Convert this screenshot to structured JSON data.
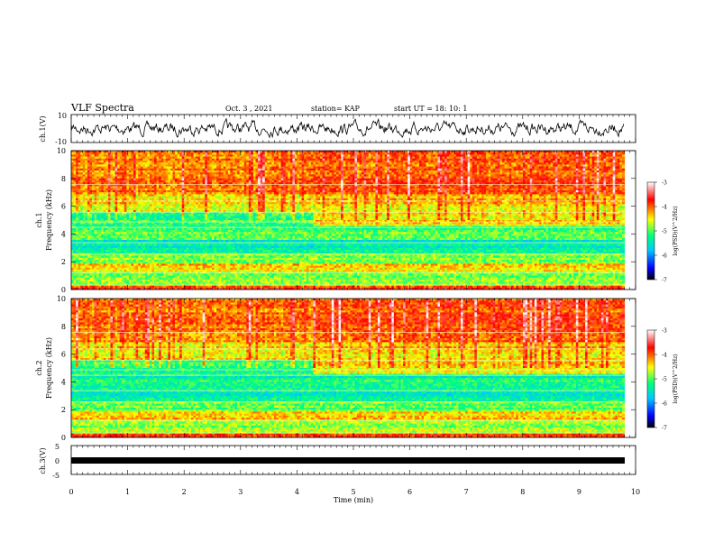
{
  "header": {
    "title": "VLF Spectra",
    "date": "Oct. 3 , 2021",
    "station": "station= KAP",
    "start": "start  UT =   18: 10: 1"
  },
  "chart_data": [
    {
      "type": "line",
      "ylabel": "ch.1(V)",
      "ylim": [
        -10,
        10
      ],
      "yticks": [
        "10",
        "-10"
      ],
      "x_range": [
        0,
        10
      ],
      "note": "noisy waveform from 0 to ~9.8 min"
    },
    {
      "type": "heatmap",
      "ylabel": "ch.1\nFrequency (kHz)",
      "ylim": [
        0,
        10
      ],
      "yticks": [
        "0",
        "2",
        "4",
        "6",
        "8",
        "10"
      ],
      "x_range": [
        0,
        10
      ],
      "data_end_min": 9.8,
      "colorbar": {
        "label": "log(PSD)(V^2/Hz)",
        "range": [
          -7,
          -3
        ],
        "ticks": [
          "-3",
          "-4",
          "-5",
          "-6",
          "-7"
        ]
      }
    },
    {
      "type": "heatmap",
      "ylabel": "ch.2\nFrequency (kHz)",
      "ylim": [
        0,
        10
      ],
      "yticks": [
        "0",
        "2",
        "4",
        "6",
        "8",
        "10"
      ],
      "x_range": [
        0,
        10
      ],
      "data_end_min": 9.8,
      "colorbar": {
        "label": "log(PSD)(V^2/Hz)",
        "range": [
          -7,
          -3
        ],
        "ticks": [
          "-3",
          "-4",
          "-5",
          "-6",
          "-7"
        ]
      }
    },
    {
      "type": "line",
      "ylabel": "ch.3(V)",
      "ylim": [
        -5,
        5
      ],
      "yticks": [
        "5",
        "0",
        "-5"
      ],
      "x_range": [
        0,
        10
      ],
      "note": "flat band near -0.5 V to ~9.8 min"
    }
  ],
  "xaxis": {
    "label": "Time (min)",
    "ticks": [
      "0",
      "1",
      "2",
      "3",
      "4",
      "5",
      "6",
      "7",
      "8",
      "9",
      "10"
    ]
  },
  "colors": {
    "colormap": [
      "#000000",
      "#0000ff",
      "#00c8ff",
      "#00ff80",
      "#ffff00",
      "#ff0000",
      "#ffffff"
    ]
  }
}
